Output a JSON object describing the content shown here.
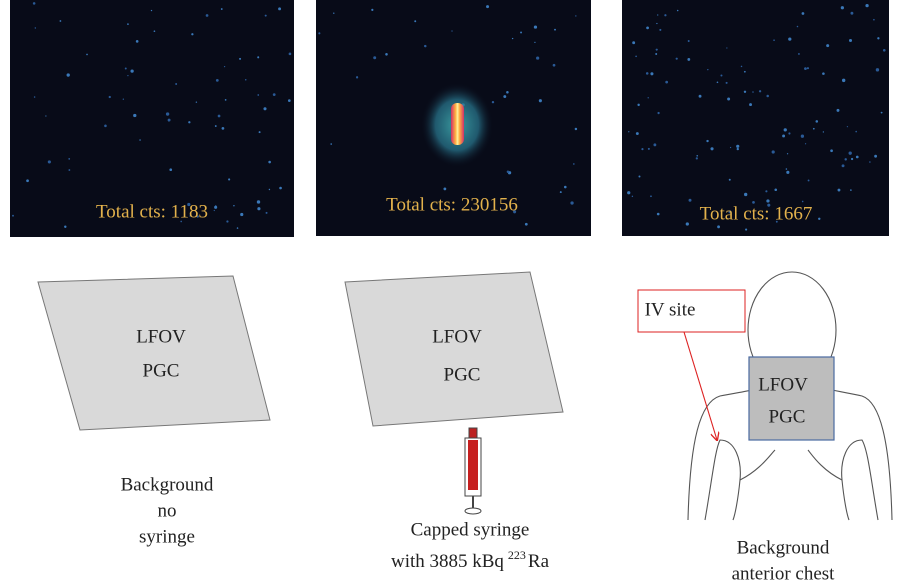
{
  "panels": [
    {
      "image_label": "Total cts: 1183",
      "diagram": {
        "line1": "LFOV",
        "line2": "PGC"
      },
      "caption": [
        "Background",
        "no",
        "syringe"
      ]
    },
    {
      "image_label": "Total cts: 230156",
      "diagram": {
        "line1": "LFOV",
        "line2": "PGC"
      },
      "caption": [
        "Capped syringe"
      ],
      "caption_second_line": {
        "text": "with 3885 kBq",
        "superscript": "223",
        "element": "Ra"
      }
    },
    {
      "image_label": "Total cts: 1667",
      "diagram": {
        "line1": "LFOV",
        "line2": "PGC"
      },
      "callout": "IV site",
      "caption": [
        "Background",
        "anterior chest"
      ]
    }
  ]
}
